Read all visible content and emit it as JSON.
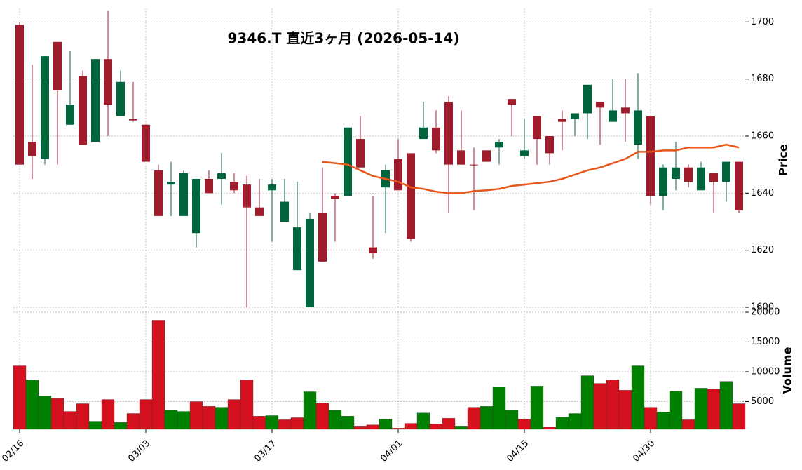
{
  "chart_data": {
    "type": "candlestick",
    "title": "9346.T 直近3ヶ月 (2026-05-14)",
    "ylabel": "Price",
    "categories": [
      "02/16",
      null,
      null,
      null,
      null,
      null,
      null,
      null,
      null,
      null,
      "03/03",
      null,
      null,
      null,
      null,
      null,
      null,
      null,
      null,
      null,
      "03/17",
      null,
      null,
      null,
      null,
      null,
      null,
      null,
      null,
      null,
      "04/01",
      null,
      null,
      null,
      null,
      null,
      null,
      null,
      null,
      null,
      "04/15",
      null,
      null,
      null,
      null,
      null,
      null,
      null,
      null,
      null,
      "04/30",
      null,
      null,
      null,
      null,
      null,
      null,
      null
    ],
    "open": [
      1699,
      1658,
      1652,
      1693,
      1664,
      1681,
      1658,
      1687,
      1667,
      1666,
      1664,
      1648,
      1643,
      1632,
      1626,
      1645,
      1645,
      1644,
      1643,
      1635,
      1641,
      1630,
      1613,
      1600,
      1633,
      1639,
      1639,
      1659,
      1621,
      1642,
      1652,
      1654,
      1659,
      1663,
      1672,
      1655,
      1650,
      1655,
      1656,
      1673,
      1653,
      1667,
      1660,
      1666,
      1666,
      1668,
      1672,
      1665,
      1670,
      1657,
      1667,
      1639,
      1645,
      1649,
      1641,
      1647,
      1644,
      1651
    ],
    "high": [
      1700,
      1685,
      1688,
      1693,
      1690,
      1683,
      1687,
      1704,
      1683,
      1679,
      1664,
      1650,
      1651,
      1648,
      1645,
      1648,
      1654,
      1647,
      1646,
      1645,
      1645,
      1645,
      1644,
      1633,
      1649,
      1640,
      1663,
      1667,
      1639,
      1650,
      1659,
      1654,
      1672,
      1669,
      1674,
      1669,
      1656,
      1655,
      1659,
      1673,
      1666,
      1667,
      1660,
      1669,
      1668,
      1678,
      1672,
      1680,
      1680,
      1682,
      1667,
      1650,
      1658,
      1650,
      1651,
      1647,
      1651,
      1651
    ],
    "low": [
      1650,
      1645,
      1650,
      1650,
      1664,
      1657,
      1658,
      1660,
      1667,
      1665,
      1651,
      1632,
      1632,
      1632,
      1621,
      1640,
      1636,
      1640,
      1600,
      1632,
      1623,
      1630,
      1613,
      1600,
      1616,
      1623,
      1639,
      1649,
      1617,
      1626,
      1641,
      1623,
      1659,
      1654,
      1633,
      1650,
      1634,
      1651,
      1650,
      1660,
      1652,
      1650,
      1650,
      1655,
      1660,
      1659,
      1657,
      1665,
      1658,
      1652,
      1636,
      1634,
      1641,
      1642,
      1641,
      1633,
      1637,
      1633
    ],
    "close": [
      1650,
      1653,
      1688,
      1676,
      1671,
      1657,
      1687,
      1671,
      1679,
      1665.5,
      1651,
      1632,
      1644,
      1647,
      1645,
      1640,
      1647,
      1641,
      1635,
      1632,
      1643,
      1637,
      1628,
      1631,
      1616,
      1638,
      1663,
      1649,
      1619,
      1648,
      1641,
      1624,
      1663,
      1655,
      1650,
      1650,
      1649.8,
      1651,
      1658,
      1671,
      1655,
      1659,
      1654,
      1665,
      1668,
      1678,
      1670,
      1669,
      1668,
      1669,
      1639,
      1649,
      1649,
      1644,
      1649,
      1644,
      1651,
      1634
    ],
    "up_color": "#00643c",
    "down_color": "#9e1c2c",
    "ylim": [
      1600,
      1705
    ],
    "yticks": [
      1600,
      1620,
      1640,
      1660,
      1680,
      1700
    ],
    "grid": true,
    "ma": {
      "color": "#e8561c",
      "values": [
        null,
        null,
        null,
        null,
        null,
        null,
        null,
        null,
        null,
        null,
        null,
        null,
        null,
        null,
        null,
        null,
        null,
        null,
        null,
        null,
        null,
        null,
        null,
        null,
        1651,
        1650.5,
        1650,
        1648,
        1646,
        1645,
        1644,
        1642,
        1641.5,
        1640.5,
        1640,
        1640,
        1640.7,
        1641,
        1641.5,
        1642.5,
        1643,
        1643.5,
        1644,
        1645,
        1646.5,
        1648,
        1649,
        1650.5,
        1652,
        1654.5,
        1654.5,
        1655,
        1655,
        1656,
        1656,
        1656,
        1657,
        1656
      ]
    },
    "volume": {
      "ylabel": "Volume",
      "up_color": "#008000",
      "down_color": "#d40f1e",
      "values": [
        11000,
        8650,
        5950,
        5500,
        3350,
        4650,
        1700,
        5350,
        1500,
        3000,
        5350,
        18650,
        3600,
        3350,
        5000,
        4200,
        4050,
        5350,
        8650,
        2550,
        2650,
        1950,
        2300,
        6650,
        4750,
        3600,
        2550,
        900,
        1100,
        2050,
        550,
        1350,
        3100,
        1250,
        2200,
        900,
        4050,
        4200,
        7450,
        3600,
        2050,
        7600,
        750,
        2400,
        3000,
        9350,
        8050,
        8650,
        6900,
        11000,
        4050,
        3250,
        6750,
        1950,
        7250,
        7100,
        8400,
        4650
      ],
      "ylim": [
        0,
        20000
      ],
      "yticks": [
        5000,
        10000,
        15000,
        20000
      ]
    }
  }
}
